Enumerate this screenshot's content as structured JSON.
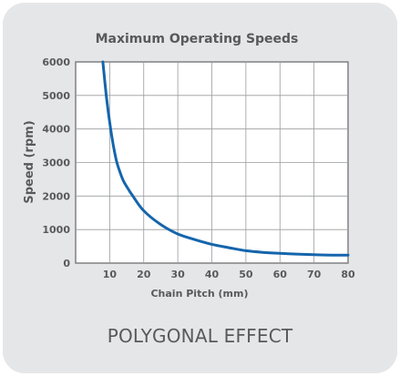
{
  "caption": "POLYGONAL EFFECT",
  "colors": {
    "curve": "#1565ac",
    "panel": "#e5e6e7",
    "plot_bg": "#ffffff",
    "grid": "#9a9b9d",
    "text": "#58595b"
  },
  "chart_data": {
    "type": "line",
    "title": "Maximum Operating Speeds",
    "xlabel": "Chain Pitch (mm)",
    "ylabel": "Speed (rpm)",
    "xlim": [
      0,
      80
    ],
    "ylim": [
      0,
      6000
    ],
    "xticks": [
      10,
      20,
      30,
      40,
      50,
      60,
      70,
      80
    ],
    "yticks": [
      0,
      1000,
      2000,
      3000,
      4000,
      5000,
      6000
    ],
    "grid": true,
    "series": [
      {
        "x": [
          8,
          9,
          10,
          11,
          12,
          13,
          14,
          15,
          17,
          20,
          25,
          30,
          35,
          40,
          45,
          50,
          55,
          60,
          65,
          70,
          75,
          80
        ],
        "y": [
          6000,
          5000,
          4200,
          3550,
          3050,
          2720,
          2460,
          2280,
          1970,
          1560,
          1150,
          870,
          700,
          560,
          460,
          370,
          320,
          290,
          270,
          250,
          240,
          235
        ]
      }
    ]
  }
}
